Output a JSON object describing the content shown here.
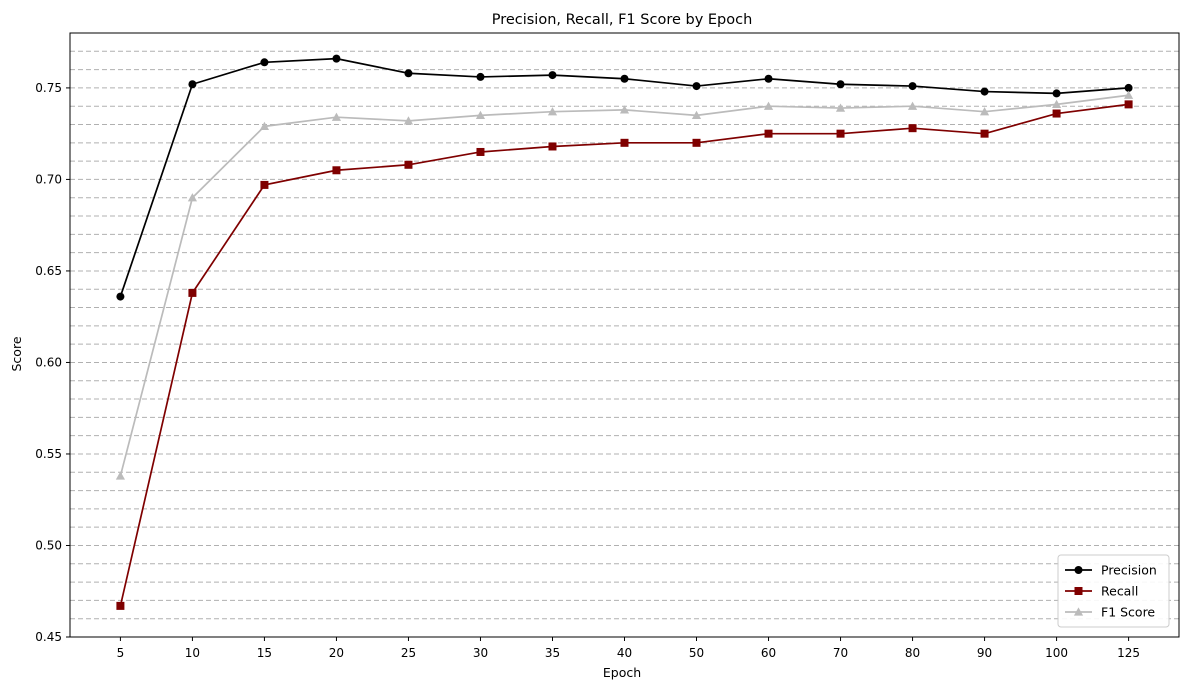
{
  "chart_data": {
    "type": "line",
    "title": "Precision, Recall, F1 Score by Epoch",
    "xlabel": "Epoch",
    "ylabel": "Score",
    "categories": [
      "5",
      "10",
      "15",
      "20",
      "25",
      "30",
      "35",
      "40",
      "50",
      "60",
      "70",
      "80",
      "90",
      "100",
      "125"
    ],
    "ylim": [
      0.45,
      0.78
    ],
    "yticks": [
      "0.45",
      "0.50",
      "0.55",
      "0.60",
      "0.65",
      "0.70",
      "0.75"
    ],
    "grid": {
      "axis": "y",
      "style": "dashed",
      "step": 0.01
    },
    "legend_position": "bottom-right",
    "series": [
      {
        "name": "Precision",
        "color": "#000000",
        "marker": "circle",
        "values": [
          0.636,
          0.752,
          0.764,
          0.766,
          0.758,
          0.756,
          0.757,
          0.755,
          0.751,
          0.755,
          0.752,
          0.751,
          0.748,
          0.747,
          0.75
        ]
      },
      {
        "name": "Recall",
        "color": "#7f0000",
        "marker": "square",
        "values": [
          0.467,
          0.638,
          0.697,
          0.705,
          0.708,
          0.715,
          0.718,
          0.72,
          0.72,
          0.725,
          0.725,
          0.728,
          0.725,
          0.736,
          0.741
        ]
      },
      {
        "name": "F1 Score",
        "color": "#bbbbbb",
        "marker": "triangle",
        "values": [
          0.538,
          0.69,
          0.729,
          0.734,
          0.732,
          0.735,
          0.737,
          0.738,
          0.735,
          0.74,
          0.739,
          0.74,
          0.737,
          0.741,
          0.746
        ]
      }
    ]
  }
}
